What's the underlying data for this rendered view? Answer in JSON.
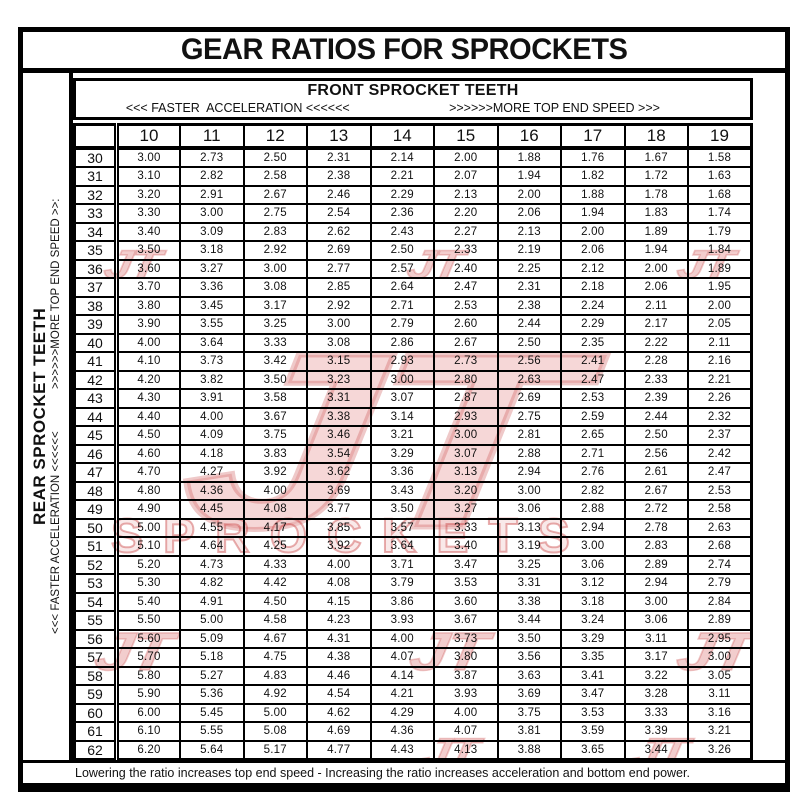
{
  "title": "GEAR RATIOS FOR SPROCKETS",
  "front_header": {
    "title": "FRONT SPROCKET TEETH",
    "acceleration_label": "<<< FASTER  ACCELERATION <<<<<<",
    "top_speed_label": ">>>>>>MORE TOP END SPEED >>>"
  },
  "left_labels": {
    "rear_sprocket": "REAR SPROCKET TEETH",
    "acceleration_label": "<<< FASTER  ACCELERATION <<<<<<",
    "top_speed_label": ">>>>>>MORE TOP END SPEED >>:"
  },
  "watermark": {
    "monogram": "JT",
    "text": "SPROCKETS",
    "color": "#c83e3e"
  },
  "footer": {
    "note": "Lowering the ratio increases top end speed - Increasing the ratio increases acceleration and bottom end power."
  },
  "table": {
    "front_teeth": [
      "10",
      "11",
      "12",
      "13",
      "14",
      "15",
      "16",
      "17",
      "18",
      "19"
    ],
    "rows": [
      {
        "rear": "30",
        "values": [
          "3.00",
          "2.73",
          "2.50",
          "2.31",
          "2.14",
          "2.00",
          "1.88",
          "1.76",
          "1.67",
          "1.58"
        ]
      },
      {
        "rear": "31",
        "values": [
          "3.10",
          "2.82",
          "2.58",
          "2.38",
          "2.21",
          "2.07",
          "1.94",
          "1.82",
          "1.72",
          "1.63"
        ]
      },
      {
        "rear": "32",
        "values": [
          "3.20",
          "2.91",
          "2.67",
          "2.46",
          "2.29",
          "2.13",
          "2.00",
          "1.88",
          "1.78",
          "1.68"
        ]
      },
      {
        "rear": "33",
        "values": [
          "3.30",
          "3.00",
          "2.75",
          "2.54",
          "2.36",
          "2.20",
          "2.06",
          "1.94",
          "1.83",
          "1.74"
        ]
      },
      {
        "rear": "34",
        "values": [
          "3.40",
          "3.09",
          "2.83",
          "2.62",
          "2.43",
          "2.27",
          "2.13",
          "2.00",
          "1.89",
          "1.79"
        ]
      },
      {
        "rear": "35",
        "values": [
          "3.50",
          "3.18",
          "2.92",
          "2.69",
          "2.50",
          "2.33",
          "2.19",
          "2.06",
          "1.94",
          "1.84"
        ]
      },
      {
        "rear": "36",
        "values": [
          "3.60",
          "3.27",
          "3.00",
          "2.77",
          "2.57",
          "2.40",
          "2.25",
          "2.12",
          "2.00",
          "1.89"
        ]
      },
      {
        "rear": "37",
        "values": [
          "3.70",
          "3.36",
          "3.08",
          "2.85",
          "2.64",
          "2.47",
          "2.31",
          "2.18",
          "2.06",
          "1.95"
        ]
      },
      {
        "rear": "38",
        "values": [
          "3.80",
          "3.45",
          "3.17",
          "2.92",
          "2.71",
          "2.53",
          "2.38",
          "2.24",
          "2.11",
          "2.00"
        ]
      },
      {
        "rear": "39",
        "values": [
          "3.90",
          "3.55",
          "3.25",
          "3.00",
          "2.79",
          "2.60",
          "2.44",
          "2.29",
          "2.17",
          "2.05"
        ]
      },
      {
        "rear": "40",
        "values": [
          "4.00",
          "3.64",
          "3.33",
          "3.08",
          "2.86",
          "2.67",
          "2.50",
          "2.35",
          "2.22",
          "2.11"
        ]
      },
      {
        "rear": "41",
        "values": [
          "4.10",
          "3.73",
          "3.42",
          "3.15",
          "2.93",
          "2.73",
          "2.56",
          "2.41",
          "2.28",
          "2.16"
        ]
      },
      {
        "rear": "42",
        "values": [
          "4.20",
          "3.82",
          "3.50",
          "3.23",
          "3.00",
          "2.80",
          "2.63",
          "2.47",
          "2.33",
          "2.21"
        ]
      },
      {
        "rear": "43",
        "values": [
          "4.30",
          "3.91",
          "3.58",
          "3.31",
          "3.07",
          "2.87",
          "2.69",
          "2.53",
          "2.39",
          "2.26"
        ]
      },
      {
        "rear": "44",
        "values": [
          "4.40",
          "4.00",
          "3.67",
          "3.38",
          "3.14",
          "2.93",
          "2.75",
          "2.59",
          "2.44",
          "2.32"
        ]
      },
      {
        "rear": "45",
        "values": [
          "4.50",
          "4.09",
          "3.75",
          "3.46",
          "3.21",
          "3.00",
          "2.81",
          "2.65",
          "2.50",
          "2.37"
        ]
      },
      {
        "rear": "46",
        "values": [
          "4.60",
          "4.18",
          "3.83",
          "3.54",
          "3.29",
          "3.07",
          "2.88",
          "2.71",
          "2.56",
          "2.42"
        ]
      },
      {
        "rear": "47",
        "values": [
          "4.70",
          "4.27",
          "3.92",
          "3.62",
          "3.36",
          "3.13",
          "2.94",
          "2.76",
          "2.61",
          "2.47"
        ]
      },
      {
        "rear": "48",
        "values": [
          "4.80",
          "4.36",
          "4.00",
          "3.69",
          "3.43",
          "3.20",
          "3.00",
          "2.82",
          "2.67",
          "2.53"
        ]
      },
      {
        "rear": "49",
        "values": [
          "4.90",
          "4.45",
          "4.08",
          "3.77",
          "3.50",
          "3.27",
          "3.06",
          "2.88",
          "2.72",
          "2.58"
        ]
      },
      {
        "rear": "50",
        "values": [
          "5.00",
          "4.55",
          "4.17",
          "3.85",
          "3.57",
          "3.33",
          "3.13",
          "2.94",
          "2.78",
          "2.63"
        ]
      },
      {
        "rear": "51",
        "values": [
          "5.10",
          "4.64",
          "4.25",
          "3.92",
          "3.64",
          "3.40",
          "3.19",
          "3.00",
          "2.83",
          "2.68"
        ]
      },
      {
        "rear": "52",
        "values": [
          "5.20",
          "4.73",
          "4.33",
          "4.00",
          "3.71",
          "3.47",
          "3.25",
          "3.06",
          "2.89",
          "2.74"
        ]
      },
      {
        "rear": "53",
        "values": [
          "5.30",
          "4.82",
          "4.42",
          "4.08",
          "3.79",
          "3.53",
          "3.31",
          "3.12",
          "2.94",
          "2.79"
        ]
      },
      {
        "rear": "54",
        "values": [
          "5.40",
          "4.91",
          "4.50",
          "4.15",
          "3.86",
          "3.60",
          "3.38",
          "3.18",
          "3.00",
          "2.84"
        ]
      },
      {
        "rear": "55",
        "values": [
          "5.50",
          "5.00",
          "4.58",
          "4.23",
          "3.93",
          "3.67",
          "3.44",
          "3.24",
          "3.06",
          "2.89"
        ]
      },
      {
        "rear": "56",
        "values": [
          "5.60",
          "5.09",
          "4.67",
          "4.31",
          "4.00",
          "3.73",
          "3.50",
          "3.29",
          "3.11",
          "2.95"
        ]
      },
      {
        "rear": "57",
        "values": [
          "5.70",
          "5.18",
          "4.75",
          "4.38",
          "4.07",
          "3.80",
          "3.56",
          "3.35",
          "3.17",
          "3.00"
        ]
      },
      {
        "rear": "58",
        "values": [
          "5.80",
          "5.27",
          "4.83",
          "4.46",
          "4.14",
          "3.87",
          "3.63",
          "3.41",
          "3.22",
          "3.05"
        ]
      },
      {
        "rear": "59",
        "values": [
          "5.90",
          "5.36",
          "4.92",
          "4.54",
          "4.21",
          "3.93",
          "3.69",
          "3.47",
          "3.28",
          "3.11"
        ]
      },
      {
        "rear": "60",
        "values": [
          "6.00",
          "5.45",
          "5.00",
          "4.62",
          "4.29",
          "4.00",
          "3.75",
          "3.53",
          "3.33",
          "3.16"
        ]
      },
      {
        "rear": "61",
        "values": [
          "6.10",
          "5.55",
          "5.08",
          "4.69",
          "4.36",
          "4.07",
          "3.81",
          "3.59",
          "3.39",
          "3.21"
        ]
      },
      {
        "rear": "62",
        "values": [
          "6.20",
          "5.64",
          "5.17",
          "4.77",
          "4.43",
          "4.13",
          "3.88",
          "3.65",
          "3.44",
          "3.26"
        ]
      }
    ]
  }
}
